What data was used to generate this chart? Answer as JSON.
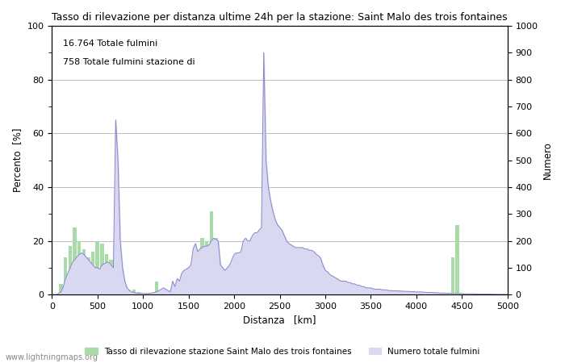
{
  "title": "Tasso di rilevazione per distanza ultime 24h per la stazione: Saint Malo des trois fontaines",
  "xlabel": "Distanza   [km]",
  "ylabel_left": "Percento  [%]",
  "ylabel_right": "Numero",
  "annotation_line1": "16.764 Totale fulmini",
  "annotation_line2": "758 Totale fulmini stazione di",
  "xlim": [
    0,
    5000
  ],
  "ylim_left": [
    0,
    100
  ],
  "ylim_right": [
    0,
    1000
  ],
  "xticks": [
    0,
    500,
    1000,
    1500,
    2000,
    2500,
    3000,
    3500,
    4000,
    4500,
    5000
  ],
  "yticks_left": [
    0,
    20,
    40,
    60,
    80,
    100
  ],
  "yticks_right": [
    0,
    100,
    200,
    300,
    400,
    500,
    600,
    700,
    800,
    900,
    1000
  ],
  "legend_label_green": "Tasso di rilevazione stazione Saint Malo des trois fontaines",
  "legend_label_blue": "Numero totale fulmini",
  "watermark": "www.lightningmaps.org",
  "green_color": "#a8dba8",
  "blue_line_color": "#8888cc",
  "blue_fill_color": "#d8d8f0",
  "background_color": "#ffffff",
  "grid_color": "#bbbbbb",
  "figsize": [
    7.0,
    4.5
  ],
  "dpi": 100,
  "bar_distances": [
    50,
    100,
    150,
    200,
    250,
    300,
    350,
    400,
    450,
    500,
    550,
    600,
    650,
    700,
    750,
    800,
    850,
    900,
    950,
    1000,
    1050,
    1100,
    1150,
    1200,
    1250,
    1300,
    1350,
    1400,
    1450,
    1500,
    1550,
    1600,
    1650,
    1700,
    1750,
    1800,
    1850,
    1900,
    1950,
    2000,
    2050,
    2100,
    2150,
    2200,
    2250,
    2300,
    2350,
    2400,
    2450,
    2500,
    2550,
    2600,
    2650,
    2700,
    2750,
    2800,
    2850,
    2900,
    2950,
    3000,
    3050,
    3100,
    3150,
    3200,
    3250,
    3300,
    3350,
    3400,
    3450,
    3500,
    3550,
    3600,
    3650,
    3700,
    3750,
    3800,
    3850,
    3900,
    3950,
    4000,
    4050,
    4100,
    4150,
    4200,
    4250,
    4300,
    4350,
    4400,
    4450,
    4500,
    4550,
    4600,
    4650,
    4700,
    4750,
    4800,
    4850,
    4900,
    4950,
    5000
  ],
  "bar_values": [
    0,
    4,
    14,
    18,
    25,
    20,
    17,
    14,
    16,
    20,
    19,
    15,
    13,
    21,
    9,
    4,
    2,
    2,
    1,
    0,
    0,
    0,
    5,
    0,
    2,
    1,
    0,
    0,
    4,
    7,
    8,
    16,
    21,
    20,
    31,
    21,
    8,
    7,
    7,
    7,
    8,
    9,
    5,
    21,
    21,
    7,
    8,
    7,
    6,
    7,
    5,
    4,
    4,
    3,
    4,
    3,
    3,
    3,
    2,
    2,
    2,
    2,
    2,
    2,
    2,
    2,
    1,
    1,
    1,
    1,
    1,
    1,
    1,
    1,
    0,
    0,
    0,
    0,
    0,
    0,
    0,
    0,
    0,
    0,
    0,
    0,
    0,
    14,
    26,
    0,
    0,
    0,
    0,
    0,
    0,
    0,
    0,
    0,
    0,
    0
  ],
  "line_distances": [
    0,
    25,
    50,
    75,
    100,
    125,
    150,
    175,
    200,
    225,
    250,
    275,
    300,
    325,
    350,
    375,
    400,
    425,
    450,
    475,
    500,
    525,
    550,
    575,
    600,
    625,
    650,
    675,
    700,
    725,
    750,
    775,
    800,
    825,
    850,
    875,
    900,
    925,
    950,
    975,
    1000,
    1025,
    1050,
    1075,
    1100,
    1125,
    1150,
    1175,
    1200,
    1225,
    1250,
    1275,
    1300,
    1325,
    1350,
    1375,
    1400,
    1425,
    1450,
    1475,
    1500,
    1525,
    1550,
    1575,
    1600,
    1625,
    1650,
    1675,
    1700,
    1725,
    1750,
    1775,
    1800,
    1825,
    1850,
    1875,
    1900,
    1925,
    1950,
    1975,
    2000,
    2025,
    2050,
    2075,
    2100,
    2125,
    2150,
    2175,
    2200,
    2225,
    2250,
    2275,
    2300,
    2325,
    2350,
    2375,
    2400,
    2425,
    2450,
    2475,
    2500,
    2525,
    2550,
    2575,
    2600,
    2625,
    2650,
    2675,
    2700,
    2725,
    2750,
    2775,
    2800,
    2825,
    2850,
    2875,
    2900,
    2925,
    2950,
    2975,
    3000,
    3025,
    3050,
    3075,
    3100,
    3125,
    3150,
    3175,
    3200,
    3225,
    3250,
    3275,
    3300,
    3325,
    3350,
    3375,
    3400,
    3425,
    3450,
    3475,
    3500,
    3525,
    3550,
    3575,
    3600,
    3625,
    3650,
    3675,
    3700,
    3725,
    3750,
    3775,
    3800,
    3825,
    3850,
    3875,
    3900,
    3925,
    3950,
    3975,
    4000,
    4025,
    4050,
    4075,
    4100,
    4125,
    4150,
    4175,
    4200,
    4225,
    4250,
    4275,
    4300,
    4325,
    4350,
    4375,
    4400,
    4425,
    4450,
    4475,
    4500,
    4525,
    4550,
    4575,
    4600,
    4625,
    4650,
    4675,
    4700,
    4725,
    4750,
    4775,
    4800,
    4825,
    4850,
    4875,
    4900,
    4925,
    4950,
    4975,
    5000
  ],
  "line_values": [
    0,
    0,
    0,
    5,
    10,
    30,
    60,
    80,
    100,
    120,
    130,
    140,
    150,
    155,
    150,
    140,
    130,
    120,
    110,
    100,
    100,
    95,
    110,
    115,
    120,
    120,
    110,
    100,
    650,
    500,
    200,
    100,
    50,
    25,
    15,
    10,
    8,
    6,
    5,
    5,
    4,
    4,
    4,
    5,
    6,
    8,
    10,
    15,
    20,
    25,
    20,
    15,
    10,
    50,
    30,
    60,
    50,
    80,
    90,
    95,
    100,
    110,
    170,
    190,
    160,
    170,
    175,
    180,
    180,
    185,
    200,
    210,
    205,
    200,
    110,
    100,
    90,
    100,
    110,
    130,
    150,
    155,
    155,
    160,
    200,
    210,
    200,
    200,
    220,
    230,
    230,
    240,
    250,
    900,
    500,
    400,
    350,
    310,
    280,
    260,
    250,
    240,
    220,
    200,
    190,
    185,
    180,
    175,
    175,
    175,
    175,
    170,
    170,
    165,
    165,
    160,
    150,
    145,
    135,
    110,
    90,
    85,
    75,
    70,
    65,
    60,
    55,
    50,
    50,
    50,
    45,
    45,
    40,
    40,
    35,
    35,
    30,
    30,
    25,
    25,
    25,
    22,
    20,
    20,
    20,
    18,
    18,
    17,
    15,
    15,
    14,
    14,
    14,
    13,
    13,
    12,
    12,
    12,
    11,
    11,
    10,
    10,
    10,
    9,
    9,
    8,
    8,
    8,
    7,
    7,
    6,
    6,
    6,
    5,
    5,
    5,
    4,
    4,
    4,
    4,
    4,
    3,
    3,
    3,
    3,
    3,
    3,
    2,
    2,
    2,
    2,
    2,
    2,
    2,
    1,
    1,
    1,
    1,
    1,
    1,
    0
  ]
}
